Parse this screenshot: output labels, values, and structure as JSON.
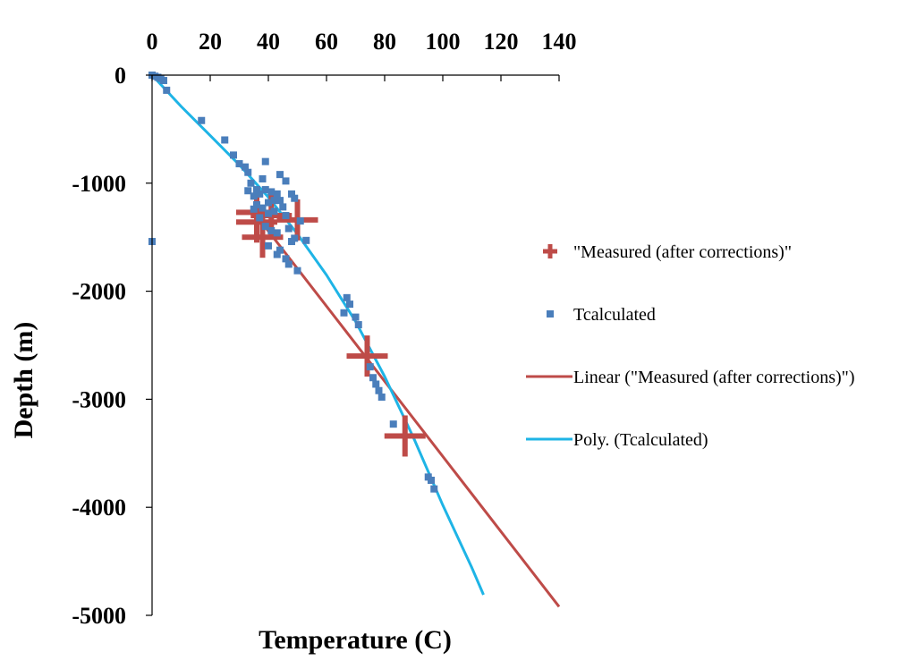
{
  "chart_data": {
    "type": "scatter",
    "title": "",
    "xlabel": "Temperature (C)",
    "ylabel": "Depth (m)",
    "xlim": [
      0,
      140
    ],
    "ylim": [
      -5000,
      0
    ],
    "x_ticks": [
      "0",
      "20",
      "40",
      "60",
      "80",
      "100",
      "120",
      "140"
    ],
    "y_ticks": [
      "0",
      "-1000",
      "-2000",
      "-3000",
      "-4000",
      "-5000"
    ],
    "x_axis_position": "top",
    "legend_position": "right",
    "colors": {
      "measured": "#be4b48",
      "tcalculated": "#4a7ebb",
      "linear": "#be4b48",
      "poly": "#1eb4e6",
      "axis": "#000000"
    },
    "series": [
      {
        "name": "\"Measured (after corrections)\"",
        "type": "scatter",
        "marker": "cross",
        "points": [
          {
            "x": 36,
            "y": -1270
          },
          {
            "x": 36,
            "y": -1360
          },
          {
            "x": 41,
            "y": -1300
          },
          {
            "x": 38,
            "y": -1500
          },
          {
            "x": 50,
            "y": -1340
          },
          {
            "x": 74,
            "y": -2600
          },
          {
            "x": 87,
            "y": -3340
          }
        ]
      },
      {
        "name": "Tcalculated",
        "type": "scatter",
        "marker": "square",
        "points": [
          {
            "x": 0,
            "y": 0
          },
          {
            "x": 1,
            "y": -10
          },
          {
            "x": 2,
            "y": -20
          },
          {
            "x": 3,
            "y": -30
          },
          {
            "x": 4,
            "y": -50
          },
          {
            "x": 5,
            "y": -140
          },
          {
            "x": 0,
            "y": -1540
          },
          {
            "x": 17,
            "y": -420
          },
          {
            "x": 25,
            "y": -600
          },
          {
            "x": 28,
            "y": -740
          },
          {
            "x": 30,
            "y": -820
          },
          {
            "x": 32,
            "y": -850
          },
          {
            "x": 33,
            "y": -900
          },
          {
            "x": 39,
            "y": -800
          },
          {
            "x": 44,
            "y": -920
          },
          {
            "x": 46,
            "y": -980
          },
          {
            "x": 34,
            "y": -1000
          },
          {
            "x": 38,
            "y": -960
          },
          {
            "x": 36,
            "y": -1060
          },
          {
            "x": 33,
            "y": -1070
          },
          {
            "x": 35,
            "y": -1120
          },
          {
            "x": 37,
            "y": -1100
          },
          {
            "x": 39,
            "y": -1060
          },
          {
            "x": 41,
            "y": -1080
          },
          {
            "x": 43,
            "y": -1100
          },
          {
            "x": 48,
            "y": -1100
          },
          {
            "x": 49,
            "y": -1140
          },
          {
            "x": 42,
            "y": -1160
          },
          {
            "x": 44,
            "y": -1160
          },
          {
            "x": 40,
            "y": -1180
          },
          {
            "x": 36,
            "y": -1200
          },
          {
            "x": 35,
            "y": -1240
          },
          {
            "x": 38,
            "y": -1230
          },
          {
            "x": 45,
            "y": -1220
          },
          {
            "x": 42,
            "y": -1260
          },
          {
            "x": 40,
            "y": -1280
          },
          {
            "x": 46,
            "y": -1300
          },
          {
            "x": 37,
            "y": -1320
          },
          {
            "x": 51,
            "y": -1350
          },
          {
            "x": 39,
            "y": -1400
          },
          {
            "x": 47,
            "y": -1420
          },
          {
            "x": 41,
            "y": -1440
          },
          {
            "x": 43,
            "y": -1460
          },
          {
            "x": 49,
            "y": -1510
          },
          {
            "x": 48,
            "y": -1540
          },
          {
            "x": 53,
            "y": -1530
          },
          {
            "x": 40,
            "y": -1580
          },
          {
            "x": 44,
            "y": -1620
          },
          {
            "x": 43,
            "y": -1660
          },
          {
            "x": 46,
            "y": -1700
          },
          {
            "x": 47,
            "y": -1750
          },
          {
            "x": 50,
            "y": -1810
          },
          {
            "x": 67,
            "y": -2060
          },
          {
            "x": 68,
            "y": -2120
          },
          {
            "x": 66,
            "y": -2200
          },
          {
            "x": 70,
            "y": -2240
          },
          {
            "x": 71,
            "y": -2310
          },
          {
            "x": 75,
            "y": -2700
          },
          {
            "x": 76,
            "y": -2800
          },
          {
            "x": 77,
            "y": -2860
          },
          {
            "x": 78,
            "y": -2920
          },
          {
            "x": 79,
            "y": -2980
          },
          {
            "x": 83,
            "y": -3230
          },
          {
            "x": 95,
            "y": -3720
          },
          {
            "x": 96,
            "y": -3750
          },
          {
            "x": 97,
            "y": -3830
          }
        ]
      },
      {
        "name": "Linear (\"Measured (after corrections)\")",
        "type": "line",
        "points": [
          {
            "x": 35,
            "y": -1270
          },
          {
            "x": 140,
            "y": -4920
          }
        ]
      },
      {
        "name": "Poly. (Tcalculated)",
        "type": "line",
        "points": [
          {
            "x": 0,
            "y": 0
          },
          {
            "x": 10,
            "y": -290
          },
          {
            "x": 20,
            "y": -560
          },
          {
            "x": 30,
            "y": -830
          },
          {
            "x": 40,
            "y": -1130
          },
          {
            "x": 50,
            "y": -1470
          },
          {
            "x": 60,
            "y": -1850
          },
          {
            "x": 70,
            "y": -2280
          },
          {
            "x": 80,
            "y": -2790
          },
          {
            "x": 90,
            "y": -3360
          },
          {
            "x": 100,
            "y": -3980
          },
          {
            "x": 110,
            "y": -4560
          },
          {
            "x": 114,
            "y": -4810
          }
        ]
      }
    ]
  }
}
